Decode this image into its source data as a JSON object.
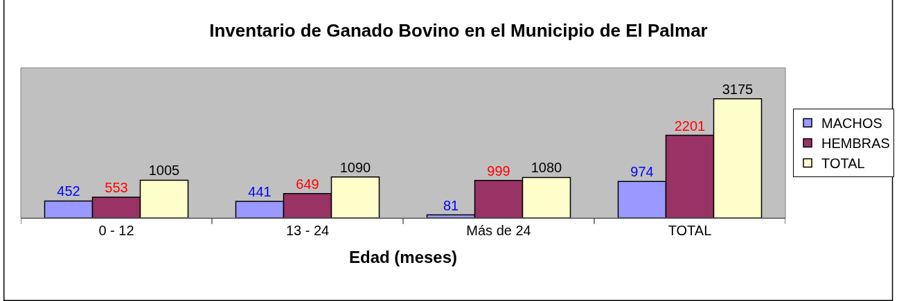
{
  "chart_data": {
    "type": "bar",
    "title": "Inventario de Ganado Bovino en el Municipio de El Palmar",
    "xlabel": "Edad (meses)",
    "categories": [
      "0 - 12",
      "13 - 24",
      "Más de 24",
      "TOTAL"
    ],
    "series": [
      {
        "name": "MACHOS",
        "color": "#9999ff",
        "values": [
          452,
          441,
          81,
          974
        ]
      },
      {
        "name": "HEMBRAS",
        "color": "#993366",
        "values": [
          553,
          649,
          999,
          2201
        ]
      },
      {
        "name": "TOTAL",
        "color": "#ffffcc",
        "values": [
          1005,
          1090,
          1080,
          3175
        ]
      }
    ],
    "ylim": [
      0,
      4000
    ],
    "data_labels": true,
    "legend": "right",
    "grid": false,
    "tick_labels": "x"
  }
}
